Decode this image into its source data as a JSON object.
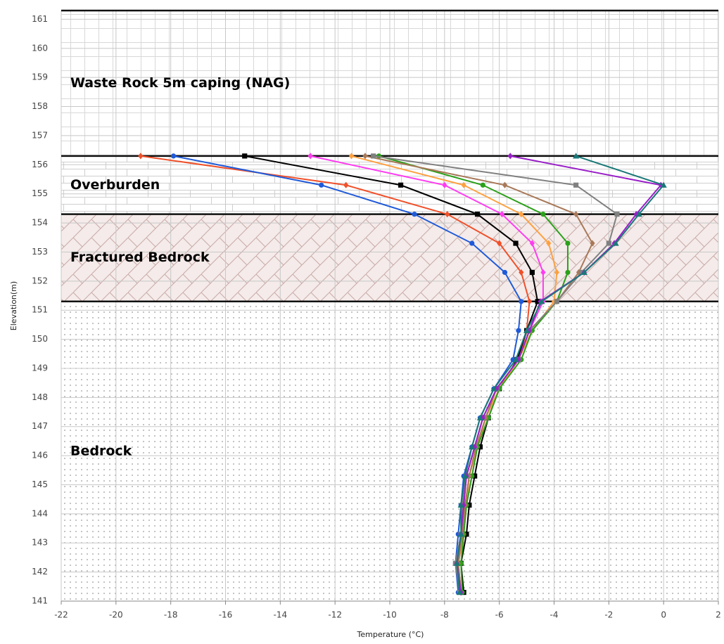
{
  "chart_data": {
    "type": "line",
    "x_label": "Temperature (°C)",
    "y_label": "Elevation(m)",
    "xlim": [
      -22,
      2
    ],
    "xticks": [
      -22,
      -20,
      -18,
      -16,
      -14,
      -12,
      -10,
      -8,
      -6,
      -4,
      -2,
      0,
      2
    ],
    "ylim": [
      141,
      161.3
    ],
    "yticks": [
      141,
      142,
      143,
      144,
      145,
      146,
      147,
      148,
      149,
      150,
      151,
      152,
      153,
      154,
      155,
      156,
      157,
      158,
      159,
      160,
      161
    ],
    "grid": true,
    "layers": [
      {
        "name": "Waste Rock 5m caping (NAG)",
        "top": 161.3,
        "bottom": 156.3,
        "pattern": "grid"
      },
      {
        "name": "Overburden",
        "top": 156.3,
        "bottom": 154.3,
        "pattern": "brick"
      },
      {
        "name": "Fractured Bedrock",
        "top": 154.3,
        "bottom": 151.3,
        "pattern": "hatch"
      },
      {
        "name": "Bedrock",
        "top": 151.3,
        "bottom": 141,
        "pattern": "dots"
      }
    ],
    "y": [
      156.3,
      155.3,
      154.3,
      153.3,
      152.3,
      151.3,
      150.3,
      149.3,
      148.3,
      147.3,
      146.3,
      145.3,
      144.3,
      143.3,
      142.3,
      141.3
    ],
    "series": [
      {
        "color": "#f0502a",
        "marker": "diamond",
        "values": [
          -19.1,
          -11.6,
          -7.9,
          -6.0,
          -5.2,
          -4.9,
          -5.0,
          -5.3,
          -6.1,
          -6.6,
          -6.9,
          -7.2,
          -7.3,
          -7.4,
          -7.5,
          -7.4
        ]
      },
      {
        "color": "#1f5ad8",
        "marker": "circle",
        "values": [
          -17.9,
          -12.5,
          -9.1,
          -7.0,
          -5.8,
          -5.2,
          -5.3,
          -5.5,
          -6.2,
          -6.7,
          -7.0,
          -7.3,
          -7.4,
          -7.5,
          -7.6,
          -7.5
        ]
      },
      {
        "color": "#000000",
        "marker": "square",
        "values": [
          -15.3,
          -9.6,
          -6.8,
          -5.4,
          -4.8,
          -4.6,
          -5.0,
          -5.35,
          -6.0,
          -6.4,
          -6.7,
          -6.9,
          -7.1,
          -7.2,
          -7.4,
          -7.3
        ]
      },
      {
        "color": "#ff3cf0",
        "marker": "diamond",
        "values": [
          -12.9,
          -8.0,
          -5.9,
          -4.8,
          -4.4,
          -4.4,
          -4.9,
          -5.3,
          -6.0,
          -6.4,
          -6.8,
          -7.0,
          -7.2,
          -7.3,
          -7.5,
          -7.4
        ]
      },
      {
        "color": "#ffa040",
        "marker": "diamond",
        "values": [
          -11.4,
          -7.3,
          -5.2,
          -4.2,
          -3.9,
          -4.0,
          -4.8,
          -5.3,
          -6.0,
          -6.5,
          -6.8,
          -7.1,
          -7.2,
          -7.3,
          -7.5,
          -7.4
        ]
      },
      {
        "color": "#2ca01a",
        "marker": "circle",
        "values": [
          -10.4,
          -6.6,
          -4.4,
          -3.5,
          -3.5,
          -3.9,
          -4.8,
          -5.2,
          -6.0,
          -6.4,
          -6.8,
          -7.0,
          -7.2,
          -7.3,
          -7.4,
          -7.35
        ]
      },
      {
        "color": "#a87858",
        "marker": "diamond",
        "values": [
          -10.9,
          -5.8,
          -3.2,
          -2.6,
          -3.1,
          -3.9,
          -4.9,
          -5.3,
          -6.1,
          -6.5,
          -6.85,
          -7.1,
          -7.25,
          -7.35,
          -7.5,
          -7.4
        ]
      },
      {
        "color": "#808080",
        "marker": "square",
        "values": [
          -10.6,
          -3.2,
          -1.7,
          -2.0,
          -3.0,
          -3.9,
          -4.9,
          -5.3,
          -6.1,
          -6.6,
          -6.9,
          -7.2,
          -7.35,
          -7.4,
          -7.6,
          -7.45
        ]
      },
      {
        "color": "#9a1fc8",
        "marker": "diamond",
        "values": [
          -5.6,
          -0.1,
          -1.0,
          -1.8,
          -2.9,
          -4.5,
          -4.9,
          -5.3,
          -6.1,
          -6.6,
          -6.9,
          -7.2,
          -7.3,
          -7.4,
          -7.55,
          -7.4
        ]
      },
      {
        "color": "#1a7878",
        "marker": "triangle",
        "values": [
          -3.2,
          0.0,
          -0.9,
          -1.75,
          -2.9,
          -4.45,
          -5.0,
          -5.4,
          -6.2,
          -6.7,
          -7.0,
          -7.25,
          -7.4,
          -7.4,
          -7.55,
          -7.45
        ]
      }
    ]
  }
}
